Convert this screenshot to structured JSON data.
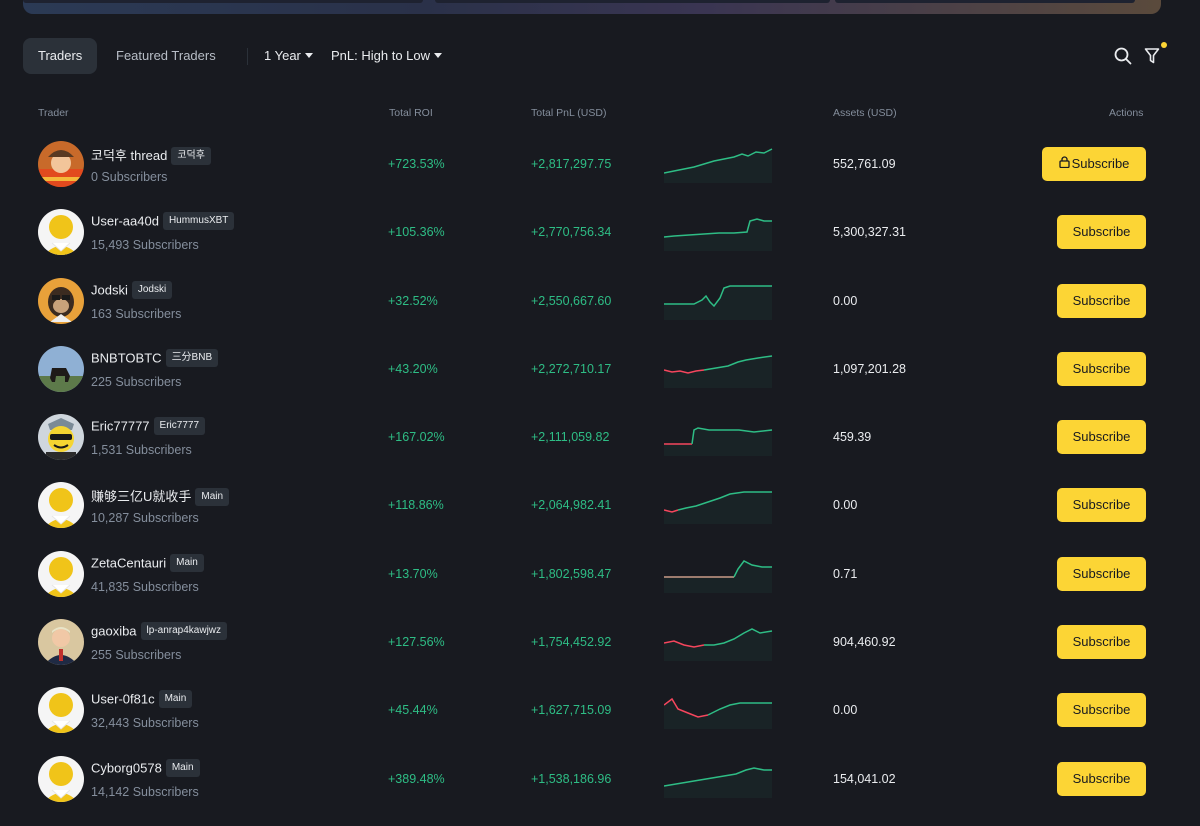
{
  "tabs": [
    {
      "label": "Traders",
      "active": true
    },
    {
      "label": "Featured Traders",
      "active": false
    }
  ],
  "filters": {
    "period": "1 Year",
    "sort": "PnL: High to Low"
  },
  "icons": {
    "search": "search-icon",
    "filter": "filter-icon",
    "lock": "lock-icon"
  },
  "colors": {
    "positive": "#2ebd85",
    "negative": "#f6465d",
    "neutral_line": "#c99b87",
    "accent": "#fcd535"
  },
  "table": {
    "headers": {
      "trader": "Trader",
      "roi": "Total ROI",
      "pnl": "Total PnL (USD)",
      "assets": "Assets (USD)",
      "actions": "Actions"
    },
    "rows": [
      {
        "name": "코덕후 thread",
        "tag": "코덕후",
        "subscribers": "0 Subscribers",
        "roi": "+723.53%",
        "pnl": "+2,817,297.75",
        "assets": "552,761.09",
        "action": "Subscribe",
        "locked": true,
        "avatar": "brown-hat",
        "trend": "up"
      },
      {
        "name": "User-aa40d",
        "tag": "HummusXBT",
        "subscribers": "15,493 Subscribers",
        "roi": "+105.36%",
        "pnl": "+2,770,756.34",
        "assets": "5,300,327.31",
        "action": "Subscribe",
        "locked": false,
        "avatar": "default",
        "trend": "jump"
      },
      {
        "name": "Jodski",
        "tag": "Jodski",
        "subscribers": "163 Subscribers",
        "roi": "+32.52%",
        "pnl": "+2,550,667.60",
        "assets": "0.00",
        "action": "Subscribe",
        "locked": false,
        "avatar": "ape",
        "trend": "volatile"
      },
      {
        "name": "BNBTOBTC",
        "tag": "三分BNB",
        "subscribers": "225 Subscribers",
        "roi": "+43.20%",
        "pnl": "+2,272,710.17",
        "assets": "1,097,201.28",
        "action": "Subscribe",
        "locked": false,
        "avatar": "landscape",
        "trend": "redstart"
      },
      {
        "name": "Eric77777",
        "tag": "Eric7777",
        "subscribers": "1,531 Subscribers",
        "roi": "+167.02%",
        "pnl": "+2,111,059.82",
        "assets": "459.39",
        "action": "Subscribe",
        "locked": false,
        "avatar": "cool",
        "trend": "step"
      },
      {
        "name": "赚够三亿U就收手",
        "tag": "Main",
        "subscribers": "10,287 Subscribers",
        "roi": "+118.86%",
        "pnl": "+2,064,982.41",
        "assets": "0.00",
        "action": "Subscribe",
        "locked": false,
        "avatar": "default",
        "trend": "redstart2"
      },
      {
        "name": "ZetaCentauri",
        "tag": "Main",
        "subscribers": "41,835 Subscribers",
        "roi": "+13.70%",
        "pnl": "+1,802,598.47",
        "assets": "0.71",
        "action": "Subscribe",
        "locked": false,
        "avatar": "default",
        "trend": "flatjump"
      },
      {
        "name": "gaoxiba",
        "tag": "lp-anrap4kawjwz",
        "subscribers": "255 Subscribers",
        "roi": "+127.56%",
        "pnl": "+1,754,452.92",
        "assets": "904,460.92",
        "action": "Subscribe",
        "locked": false,
        "avatar": "person",
        "trend": "dip"
      },
      {
        "name": "User-0f81c",
        "tag": "Main",
        "subscribers": "32,443 Subscribers",
        "roi": "+45.44%",
        "pnl": "+1,627,715.09",
        "assets": "0.00",
        "action": "Subscribe",
        "locked": false,
        "avatar": "default",
        "trend": "dip2"
      },
      {
        "name": "Cyborg0578",
        "tag": "Main",
        "subscribers": "14,142 Subscribers",
        "roi": "+389.48%",
        "pnl": "+1,538,186.96",
        "assets": "154,041.02",
        "action": "Subscribe",
        "locked": false,
        "avatar": "default",
        "trend": "up2"
      }
    ]
  }
}
